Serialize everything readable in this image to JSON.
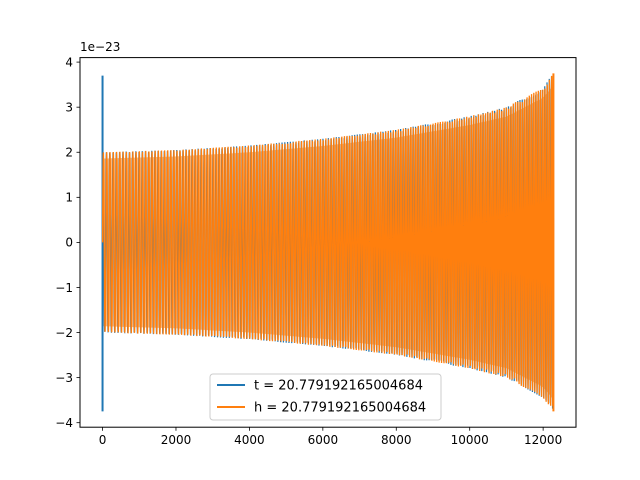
{
  "chart_data": {
    "type": "line",
    "title": "",
    "xlabel": "",
    "ylabel": "",
    "y_offset_label": "1e−23",
    "xlim": [
      -614,
      12895
    ],
    "ylim": [
      -4.1,
      4.1
    ],
    "xticks": [
      0,
      2000,
      4000,
      6000,
      8000,
      10000,
      12000
    ],
    "xtick_labels": [
      "0",
      "2000",
      "4000",
      "6000",
      "8000",
      "10000",
      "12000"
    ],
    "yticks": [
      -4,
      -3,
      -2,
      -1,
      0,
      1,
      2,
      3,
      4
    ],
    "ytick_labels": [
      "−4",
      "−3",
      "−2",
      "−1",
      "0",
      "1",
      "2",
      "3",
      "4"
    ],
    "grid": false,
    "legend_position": "lower-center",
    "series": [
      {
        "name": "t = 20.779192165004684",
        "color": "#1f77b4",
        "description_points": {
          "spike_x": [
            0,
            0
          ],
          "spike_y": [
            3.7,
            -3.75
          ],
          "envelope_x": [
            0,
            2000,
            4000,
            6000,
            8000,
            10000,
            11000,
            12000,
            12280
          ],
          "envelope_y": [
            2.0,
            2.05,
            2.15,
            2.3,
            2.5,
            2.8,
            3.0,
            3.45,
            3.75
          ]
        }
      },
      {
        "name": "h = 20.779192165004684",
        "color": "#ff7f0e",
        "description_points": {
          "envelope_x": [
            0,
            2000,
            4000,
            6000,
            8000,
            10000,
            11000,
            12000,
            12280
          ],
          "envelope_y": [
            2.0,
            2.05,
            2.15,
            2.3,
            2.5,
            2.8,
            3.0,
            3.45,
            3.75
          ]
        }
      }
    ]
  }
}
